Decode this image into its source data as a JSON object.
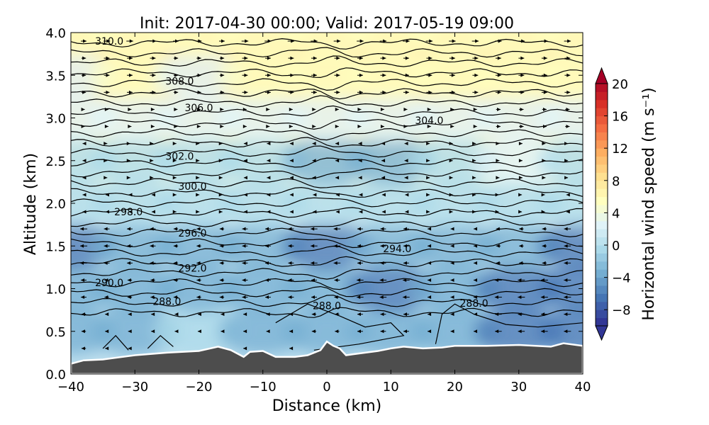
{
  "chart_data": {
    "type": "heatmap",
    "title": "Init: 2017-04-30 00:00; Valid: 2017-05-19 09:00",
    "xlabel": "Distance (km)",
    "ylabel": "Altitude (km)",
    "xlim": [
      -40,
      40
    ],
    "ylim": [
      0.0,
      4.0
    ],
    "x_ticks": [
      -40,
      -30,
      -20,
      -10,
      0,
      10,
      20,
      30,
      40
    ],
    "x_tick_labels": [
      "−40",
      "−30",
      "−20",
      "−10",
      "0",
      "10",
      "20",
      "30",
      "40"
    ],
    "y_ticks": [
      0.0,
      0.5,
      1.0,
      1.5,
      2.0,
      2.5,
      3.0,
      3.5,
      4.0
    ],
    "y_tick_labels": [
      "0.0",
      "0.5",
      "1.0",
      "1.5",
      "2.0",
      "2.5",
      "3.0",
      "3.5",
      "4.0"
    ],
    "colorbar": {
      "label": "Horizontal wind speed (m s⁻¹)",
      "range": [
        -10,
        20
      ],
      "ticks": [
        20,
        16,
        12,
        8,
        4,
        0,
        -4,
        -8
      ],
      "tick_labels": [
        "20",
        "16",
        "12",
        "8",
        "4",
        "0",
        "−4",
        "−8"
      ],
      "colors": [
        "#313695",
        "#4575b4",
        "#74add1",
        "#abd9e9",
        "#e0f3f8",
        "#ffffbf",
        "#fee090",
        "#fdae61",
        "#f46d43",
        "#d73027",
        "#a50026"
      ],
      "extend": "both"
    },
    "terrain": {
      "color": "#4d4d4d",
      "x": [
        -40,
        -38,
        -35,
        -30,
        -25,
        -20,
        -17,
        -15,
        -13,
        -12,
        -10,
        -8,
        -5,
        -3,
        -1,
        0,
        1,
        2,
        3,
        4,
        6,
        8,
        10,
        12,
        15,
        18,
        20,
        25,
        30,
        35,
        37,
        40
      ],
      "altitude": [
        0.12,
        0.16,
        0.17,
        0.22,
        0.25,
        0.27,
        0.32,
        0.28,
        0.2,
        0.26,
        0.27,
        0.2,
        0.2,
        0.22,
        0.28,
        0.38,
        0.33,
        0.3,
        0.22,
        0.23,
        0.25,
        0.27,
        0.3,
        0.32,
        0.3,
        0.31,
        0.33,
        0.33,
        0.34,
        0.32,
        0.36,
        0.33
      ]
    },
    "wind_field": {
      "description": "horizontal wind speed shading",
      "altitude_km": [
        0.5,
        1.0,
        1.5,
        2.0,
        2.5,
        3.0,
        3.5,
        4.0
      ],
      "x_km": [
        -40,
        -30,
        -20,
        -10,
        0,
        10,
        20,
        30,
        40
      ],
      "speed_ms": [
        [
          -3,
          -2,
          -1,
          -2,
          -3,
          -4,
          -2,
          -5,
          -6
        ],
        [
          -4,
          -3,
          -3,
          -4,
          -4,
          -5,
          -2,
          -6,
          -6
        ],
        [
          -6,
          -4,
          -3,
          -4,
          -5,
          -4,
          -2,
          -3,
          -5
        ],
        [
          -1,
          -1,
          0,
          -1,
          -1,
          -1,
          0,
          0,
          -1
        ],
        [
          -1,
          0,
          0,
          -1,
          -2,
          -2,
          0,
          1,
          0
        ],
        [
          1,
          2,
          2,
          2,
          2,
          1,
          2,
          3,
          3
        ],
        [
          3,
          4,
          3,
          4,
          4,
          4,
          4,
          4,
          4
        ],
        [
          4,
          5,
          4,
          5,
          5,
          5,
          5,
          5,
          5
        ]
      ]
    },
    "potential_temperature_contours": [
      {
        "value": 288.0,
        "label": "288.0",
        "label_x": -25,
        "label_alt": 0.85
      },
      {
        "value": 290.0,
        "label": "290.0",
        "label_x": -34,
        "label_alt": 1.07
      },
      {
        "value": 292.0,
        "label": "292.0",
        "label_x": -21,
        "label_alt": 1.24
      },
      {
        "value": 294.0,
        "label": "294.0",
        "label_x": 11,
        "label_alt": 1.47
      },
      {
        "value": 296.0,
        "label": "296.0",
        "label_x": -21,
        "label_alt": 1.65
      },
      {
        "value": 298.0,
        "label": "298.0",
        "label_x": -31,
        "label_alt": 1.9
      },
      {
        "value": 300.0,
        "label": "300.0",
        "label_x": -21,
        "label_alt": 2.2
      },
      {
        "value": 302.0,
        "label": "302.0",
        "label_x": -23,
        "label_alt": 2.55
      },
      {
        "value": 304.0,
        "label": "304.0",
        "label_x": 16,
        "label_alt": 2.97
      },
      {
        "value": 306.0,
        "label": "306.0",
        "label_x": -20,
        "label_alt": 3.12
      },
      {
        "value": 308.0,
        "label": "308.0",
        "label_x": -23,
        "label_alt": 3.43
      },
      {
        "value": 310.0,
        "label": "310.0",
        "label_x": -34,
        "label_alt": 3.9
      }
    ],
    "extra_contour_labels": [
      {
        "label": "288.0",
        "x": 0,
        "alt": 0.8
      },
      {
        "label": "288.0",
        "x": 23,
        "alt": 0.83
      }
    ],
    "legend": "none",
    "grid": false
  }
}
